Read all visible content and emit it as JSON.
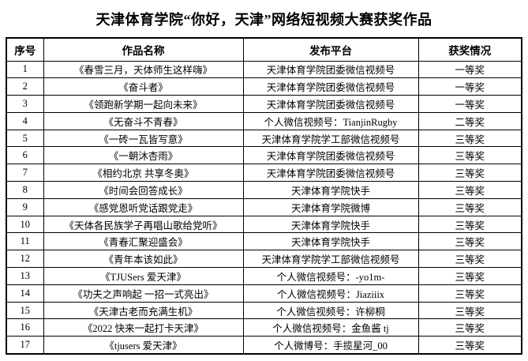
{
  "title": "天津体育学院“你好，天津”网络短视频大赛获奖作品",
  "table": {
    "headers": [
      "序号",
      "作品名称",
      "发布平台",
      "获奖情况"
    ],
    "rows": [
      {
        "index": "1",
        "title": "《春雪三月，天体师生这样嗨》",
        "platform": "天津体育学院团委微信视频号",
        "award": "一等奖"
      },
      {
        "index": "2",
        "title": "《奋斗者》",
        "platform": "天津体育学院团委微信视频号",
        "award": "一等奖"
      },
      {
        "index": "3",
        "title": "《领跑新学期一起向未来》",
        "platform": "天津体育学院团委微信视频号",
        "award": "一等奖"
      },
      {
        "index": "4",
        "title": "《无奋斗不青春》",
        "platform": "个人微信视频号：TianjinRugby",
        "award": "二等奖"
      },
      {
        "index": "5",
        "title": "《一砖一瓦皆写意》",
        "platform": "天津体育学院学工部微信视频号",
        "award": "三等奖"
      },
      {
        "index": "6",
        "title": "《一朝沐杏雨》",
        "platform": "天津体育学院团委微信视频号",
        "award": "三等奖"
      },
      {
        "index": "7",
        "title": "《相约北京 共享冬奥》",
        "platform": "天津体育学院团委微信视频号",
        "award": "三等奖"
      },
      {
        "index": "8",
        "title": "《时间会回答成长》",
        "platform": "天津体育学院快手",
        "award": "三等奖"
      },
      {
        "index": "9",
        "title": "《感党恩听党话跟党走》",
        "platform": "天津体育学院微博",
        "award": "三等奖"
      },
      {
        "index": "10",
        "title": "《天体各民族学子再唱山歌给党听》",
        "platform": "天津体育学院快手",
        "award": "三等奖"
      },
      {
        "index": "11",
        "title": "《青春汇聚迎盛会》",
        "platform": "天津体育学院快手",
        "award": "三等奖"
      },
      {
        "index": "12",
        "title": "《青年本该如此》",
        "platform": "天津体育学院学工部微信视频号",
        "award": "三等奖"
      },
      {
        "index": "13",
        "title": "《TJUSers 爱天津》",
        "platform": "个人微信视频号：-yo1m-",
        "award": "三等奖"
      },
      {
        "index": "14",
        "title": "《功夫之声响起 一招一式亮出》",
        "platform": "个人微信视频号：Jiaziiix",
        "award": "三等奖"
      },
      {
        "index": "15",
        "title": "《天津古老而充满生机》",
        "platform": "个人微信视频号：许柳桐",
        "award": "三等奖"
      },
      {
        "index": "16",
        "title": "《2022 快来一起打卡天津》",
        "platform": "个人微信视频号：金鱼酱 tj",
        "award": "三等奖"
      },
      {
        "index": "17",
        "title": "《tjusers 爱天津》",
        "platform": "个人微博号：手揽星河_00",
        "award": "三等奖"
      }
    ]
  }
}
